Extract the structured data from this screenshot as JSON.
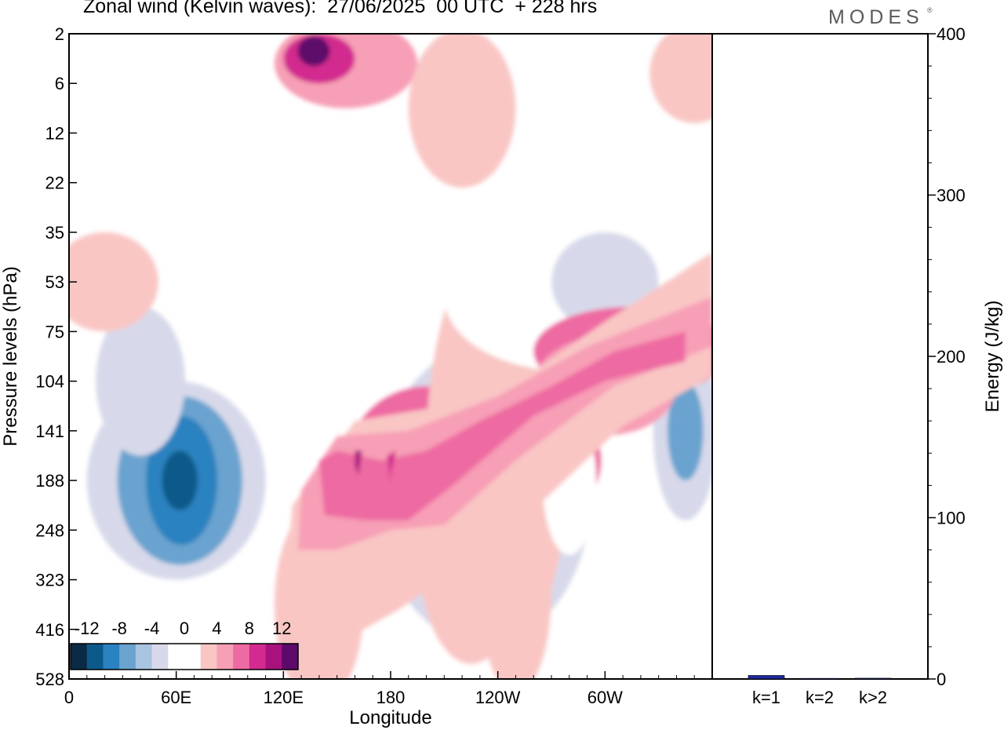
{
  "header": {
    "title": "Zonal wind (Kelvin waves):  27/06/2025  00 UTC  + 228 hrs",
    "brand": "MODES",
    "brand_mark": "®"
  },
  "chart_data": [
    {
      "type": "heatmap",
      "title": "Zonal wind (Kelvin waves):  27/06/2025  00 UTC  + 228 hrs",
      "xlabel": "Longitude",
      "ylabel": "Pressure levels (hPa)",
      "x_ticks": [
        "0",
        "60E",
        "120E",
        "180",
        "120W",
        "60W"
      ],
      "y_ticks": [
        "2",
        "6",
        "12",
        "22",
        "35",
        "53",
        "75",
        "104",
        "141",
        "188",
        "248",
        "323",
        "416",
        "528"
      ],
      "colorbar": {
        "labels": [
          "-12",
          "-8",
          "-4",
          "0",
          "4",
          "8",
          "12"
        ],
        "colors": [
          "#0b2a45",
          "#0d5a8a",
          "#2a82c0",
          "#6aa3cf",
          "#a9c4e0",
          "#d7d9ea",
          "#ffffff",
          "#ffffff",
          "#f9c6c4",
          "#f79fb6",
          "#ee6aa2",
          "#d22a8e",
          "#a8127e",
          "#5d0a6a"
        ]
      },
      "regions": [
        {
          "lon": 232,
          "lev": 9.0,
          "rx": 86,
          "ry": 4.2,
          "value": -2
        },
        {
          "lon": 232,
          "lev": 9.3,
          "rx": 60,
          "ry": 3.0,
          "value": -4
        },
        {
          "lon": 232,
          "lev": 9.7,
          "rx": 36,
          "ry": 2.0,
          "value": -6
        },
        {
          "lon": 232,
          "lev": 9.7,
          "rx": 16,
          "ry": 1.2,
          "value": -8
        },
        {
          "lon": 258,
          "lev": 8.6,
          "rx": 40,
          "ry": 1.3,
          "value": 6
        },
        {
          "lon": 255,
          "lev": 9.0,
          "rx": 20,
          "ry": 0.7,
          "value": 8
        },
        {
          "lon": 200,
          "lev": 8.7,
          "rx": 45,
          "ry": 1.6,
          "value": 6
        },
        {
          "lon": 190,
          "lev": 8.8,
          "rx": 18,
          "ry": 0.6,
          "value": 10
        },
        {
          "lon": 240,
          "lev": 8.4,
          "rx": 40,
          "ry": 4.2,
          "value": 2
        },
        {
          "lon": 242,
          "lev": 8.6,
          "rx": 20,
          "ry": 1.2,
          "value": 4
        },
        {
          "lon": 60,
          "lev": 9.0,
          "rx": 50,
          "ry": 2.0,
          "value": -4
        },
        {
          "lon": 62,
          "lev": 9.0,
          "rx": 35,
          "ry": 1.7,
          "value": -8
        },
        {
          "lon": 63,
          "lev": 9.0,
          "rx": 20,
          "ry": 1.3,
          "value": -10
        },
        {
          "lon": 62,
          "lev": 9.0,
          "rx": 10,
          "ry": 0.6,
          "value": -12
        },
        {
          "lon": 40,
          "lev": 7.0,
          "rx": 25,
          "ry": 1.5,
          "value": -4
        },
        {
          "lon": 345,
          "lev": 8.0,
          "rx": 18,
          "ry": 1.8,
          "value": -4
        },
        {
          "lon": 345,
          "lev": 8.0,
          "rx": 10,
          "ry": 1.0,
          "value": -8
        },
        {
          "lon": 280,
          "lev": 5.3,
          "rx": 70,
          "ry": 1.5,
          "value": -2
        },
        {
          "lon": 300,
          "lev": 5.0,
          "rx": 30,
          "ry": 1.0,
          "value": -4
        },
        {
          "lon": 315,
          "lev": 6.4,
          "rx": 55,
          "ry": 0.9,
          "value": 6
        },
        {
          "lon": 322,
          "lev": 6.6,
          "rx": 18,
          "ry": 0.5,
          "value": 10
        },
        {
          "lon": 300,
          "lev": 7.1,
          "rx": 40,
          "ry": 1.0,
          "value": 4
        },
        {
          "lon": 20,
          "lev": 5.0,
          "rx": 30,
          "ry": 1.0,
          "value": 2
        },
        {
          "lon": 30,
          "lev": 2.0,
          "rx": 80,
          "ry": 1.5,
          "value": -2
        },
        {
          "lon": 140,
          "lev": 11.5,
          "rx": 25,
          "ry": 2.0,
          "value": 2
        },
        {
          "lon": 250,
          "lev": 11.3,
          "rx": 20,
          "ry": 2.0,
          "value": 2
        },
        {
          "lon": 280,
          "lev": 9.0,
          "rx": 15,
          "ry": 1.5,
          "value": -2
        },
        {
          "lon": 225,
          "lev": 10.3,
          "rx": 30,
          "ry": 2.4,
          "value": 2
        },
        {
          "lon": 155,
          "lev": 0.6,
          "rx": 40,
          "ry": 0.9,
          "value": 4
        },
        {
          "lon": 140,
          "lev": 0.5,
          "rx": 20,
          "ry": 0.5,
          "value": 8
        },
        {
          "lon": 137,
          "lev": 0.35,
          "rx": 9,
          "ry": 0.3,
          "value": 12
        },
        {
          "lon": 220,
          "lev": 1.5,
          "rx": 30,
          "ry": 1.6,
          "value": 2
        },
        {
          "lon": 350,
          "lev": 0.8,
          "rx": 25,
          "ry": 1.0,
          "value": 2
        }
      ]
    },
    {
      "type": "bar",
      "categories": [
        "k=1",
        "k=2",
        "k>2"
      ],
      "values": [
        2.2,
        0.4,
        0.5
      ],
      "ylabel": "Energy (J/kg)",
      "ylim": [
        0,
        400
      ],
      "y_ticks": [
        "0",
        "100",
        "200",
        "300",
        "400"
      ],
      "bar_color": "#1f2a9b"
    }
  ]
}
